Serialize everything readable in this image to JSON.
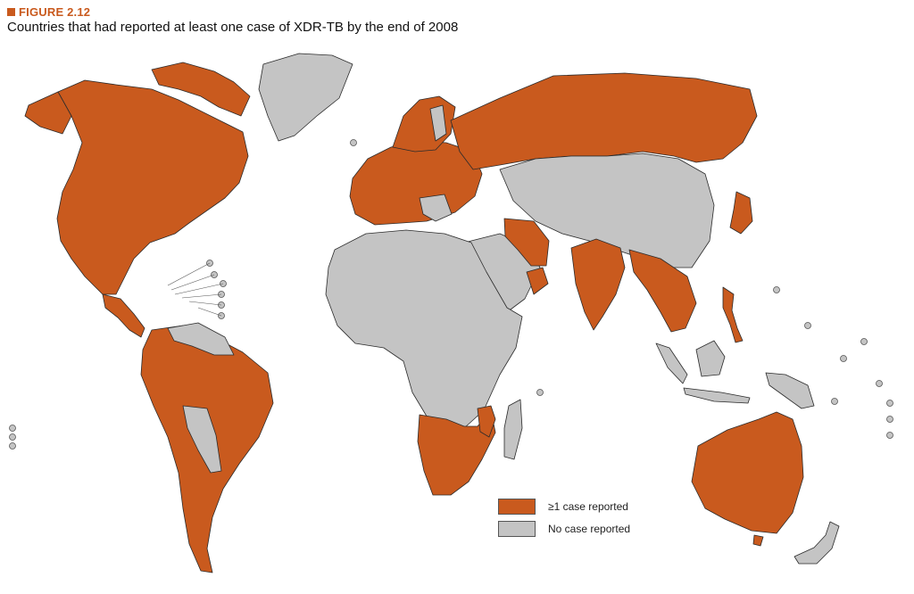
{
  "figure": {
    "label": "FIGURE 2.12",
    "title": "Countries that had reported at least one case of XDR-TB by the end of 2008"
  },
  "legend": {
    "items": [
      {
        "label": "≥1 case reported",
        "color": "#c95a1e"
      },
      {
        "label": "No case reported",
        "color": "#c4c4c4"
      }
    ]
  },
  "colors": {
    "reported": "#c95a1e",
    "not_reported": "#c4c4c4",
    "border": "#2b2b2b",
    "background": "#ffffff"
  }
}
